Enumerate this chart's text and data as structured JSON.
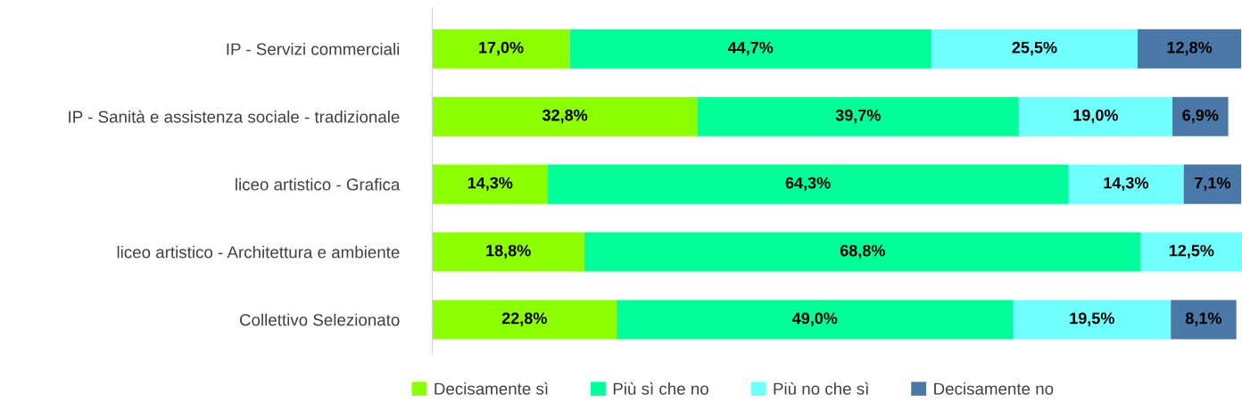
{
  "chart_data": {
    "type": "bar",
    "orientation": "horizontal",
    "stacked": true,
    "legend": "bottom",
    "grid": false,
    "categories": [
      "IP - Servizi commerciali",
      "IP - Sanità e assistenza sociale - tradizionale",
      "liceo artistico - Grafica",
      "liceo artistico - Architettura e ambiente",
      "Collettivo Selezionato"
    ],
    "series": [
      {
        "name": "Decisamente sì",
        "color": "#8cff00",
        "values": [
          17.0,
          32.8,
          14.3,
          18.8,
          22.8
        ],
        "value_labels": [
          "17,0%",
          "32,8%",
          "14,3%",
          "18,8%",
          "22,8%"
        ]
      },
      {
        "name": "Più sì che no",
        "color": "#00ff99",
        "values": [
          44.7,
          39.7,
          64.3,
          68.8,
          49.0
        ],
        "value_labels": [
          "44,7%",
          "39,7%",
          "64,3%",
          "68,8%",
          "49,0%"
        ]
      },
      {
        "name": "Più no che sì",
        "color": "#70ffff",
        "values": [
          25.5,
          19.0,
          14.3,
          12.5,
          19.5
        ],
        "value_labels": [
          "25,5%",
          "19,0%",
          "14,3%",
          "12,5%",
          "19,5%"
        ]
      },
      {
        "name": "Decisamente no",
        "color": "#4a78a8",
        "values": [
          12.8,
          6.9,
          7.1,
          null,
          8.1
        ],
        "value_labels": [
          "12,8%",
          "6,9%",
          "7,1%",
          null,
          "8,1%"
        ]
      }
    ]
  }
}
